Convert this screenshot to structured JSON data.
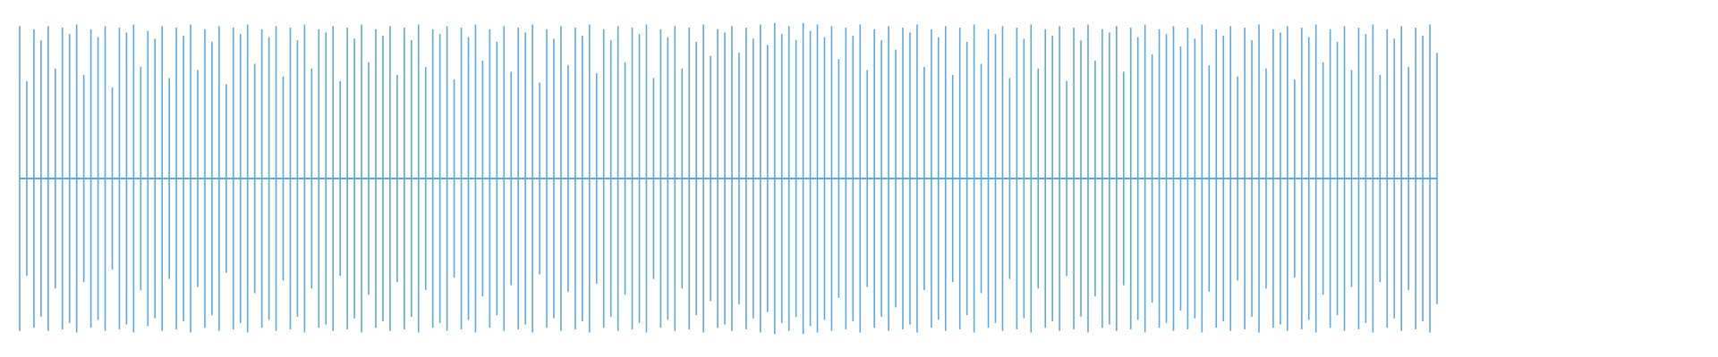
{
  "chart_data": {
    "type": "waveform",
    "color": "#5aa9e0",
    "ylim": [
      -1,
      1
    ],
    "values": [
      0.97,
      0.62,
      0.95,
      0.88,
      0.97,
      0.7,
      0.96,
      0.92,
      0.98,
      0.66,
      0.95,
      0.9,
      0.97,
      0.58,
      0.96,
      0.93,
      0.98,
      0.71,
      0.94,
      0.89,
      0.97,
      0.64,
      0.96,
      0.91,
      0.98,
      0.69,
      0.95,
      0.87,
      0.97,
      0.6,
      0.96,
      0.92,
      0.98,
      0.73,
      0.95,
      0.9,
      0.97,
      0.65,
      0.96,
      0.88,
      0.98,
      0.7,
      0.95,
      0.93,
      0.97,
      0.62,
      0.96,
      0.89,
      0.98,
      0.74,
      0.95,
      0.91,
      0.97,
      0.66,
      0.96,
      0.88,
      0.98,
      0.71,
      0.95,
      0.92,
      0.97,
      0.63,
      0.96,
      0.9,
      0.98,
      0.75,
      0.95,
      0.87,
      0.97,
      0.68,
      0.96,
      0.93,
      0.98,
      0.61,
      0.95,
      0.89,
      0.97,
      0.72,
      0.96,
      0.91,
      0.98,
      0.67,
      0.95,
      0.88,
      0.97,
      0.74,
      0.96,
      0.92,
      0.98,
      0.64,
      0.95,
      0.9,
      0.97,
      0.7,
      0.96,
      0.87,
      0.98,
      0.78,
      0.95,
      0.93,
      0.97,
      0.8,
      0.96,
      0.89,
      0.98,
      0.85,
      0.99,
      0.92,
      0.97,
      0.88,
      0.99,
      0.94,
      0.98,
      0.9,
      0.97,
      0.76,
      0.96,
      0.91,
      0.98,
      0.69,
      0.95,
      0.88,
      0.97,
      0.82,
      0.96,
      0.93,
      0.98,
      0.71,
      0.95,
      0.9,
      0.97,
      0.66,
      0.96,
      0.87,
      0.98,
      0.73,
      0.95,
      0.92,
      0.97,
      0.64,
      0.96,
      0.89,
      0.98,
      0.7,
      0.95,
      0.91,
      0.97,
      0.62,
      0.96,
      0.88,
      0.98,
      0.75,
      0.95,
      0.93,
      0.97,
      0.68,
      0.96,
      0.9,
      0.98,
      0.79,
      0.95,
      0.92,
      0.97,
      0.84,
      0.96,
      0.89,
      0.98,
      0.72,
      0.95,
      0.91,
      0.97,
      0.65,
      0.96,
      0.88,
      0.98,
      0.7,
      0.95,
      0.93,
      0.97,
      0.63,
      0.96,
      0.9,
      0.98,
      0.74,
      0.95,
      0.87,
      0.97,
      0.69,
      0.96,
      0.92,
      0.98,
      0.66,
      0.95,
      0.89,
      0.97,
      0.71,
      0.96,
      0.91,
      0.98,
      0.8
    ]
  }
}
